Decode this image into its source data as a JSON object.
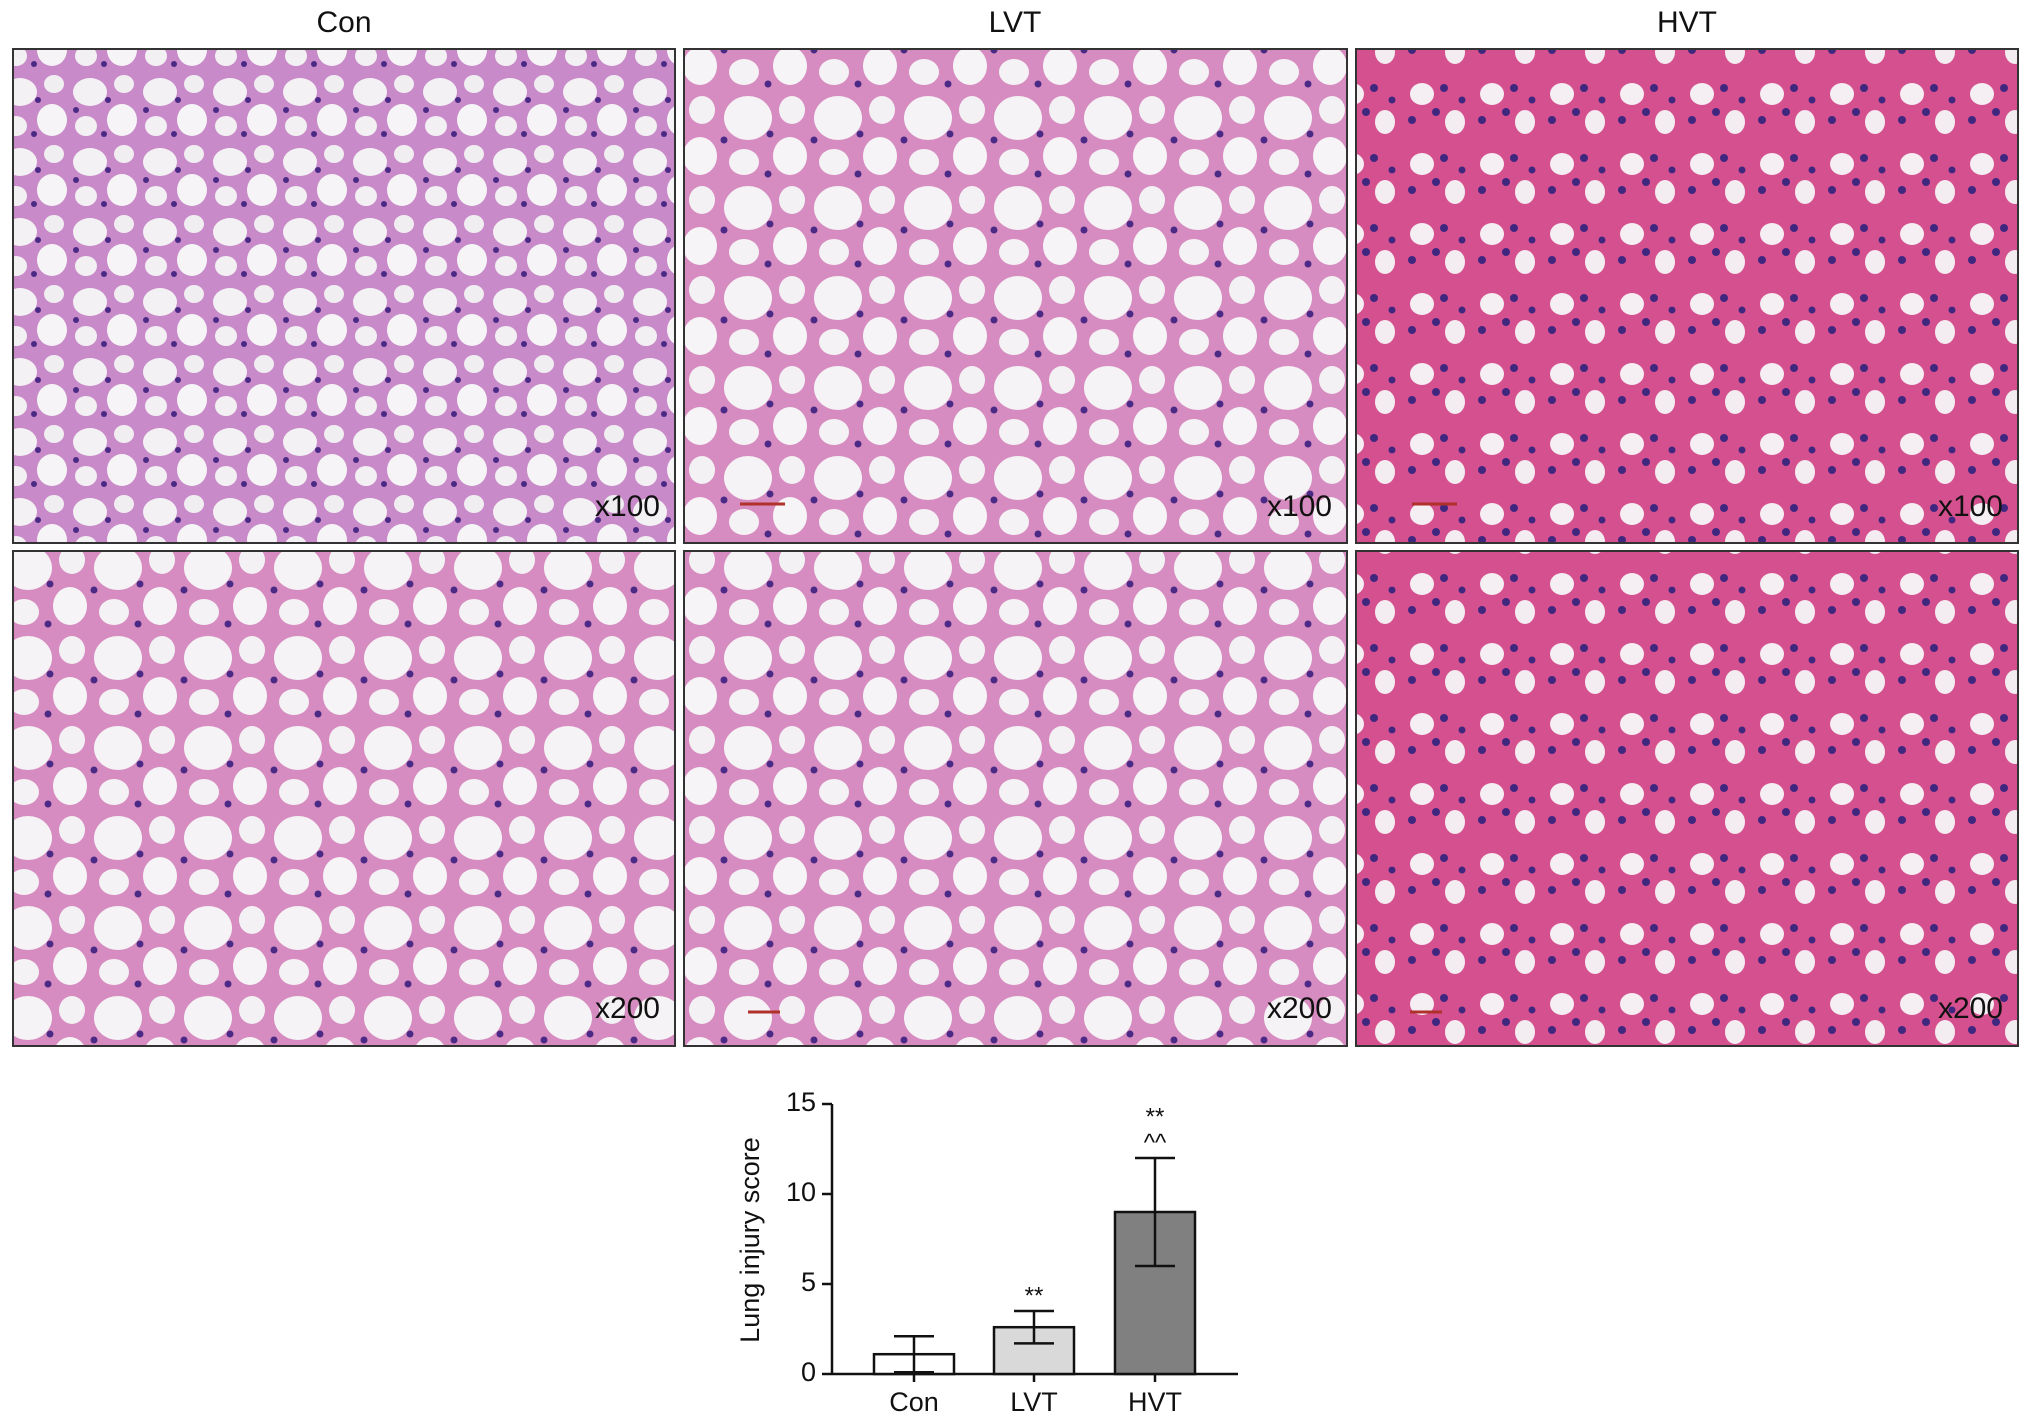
{
  "panels": {
    "columns": [
      "Con",
      "LVT",
      "HVT"
    ],
    "magnifications": [
      [
        "x100",
        "x100",
        "x100"
      ],
      [
        "x200",
        "x200",
        "x200"
      ]
    ]
  },
  "chart_data": {
    "type": "bar",
    "y_label": "Lung injury score",
    "categories": [
      "Con",
      "LVT",
      "HVT"
    ],
    "values": [
      1.1,
      2.6,
      9.0
    ],
    "errors": [
      1.0,
      0.9,
      3.0
    ],
    "colors": [
      "#ffffff",
      "#d9d9d9",
      "#808080"
    ],
    "significance": [
      null,
      [
        "**"
      ],
      [
        "**",
        "^^"
      ]
    ],
    "ylim": [
      0,
      15
    ],
    "yticks": [
      0,
      5,
      10,
      15
    ],
    "grid": false
  }
}
